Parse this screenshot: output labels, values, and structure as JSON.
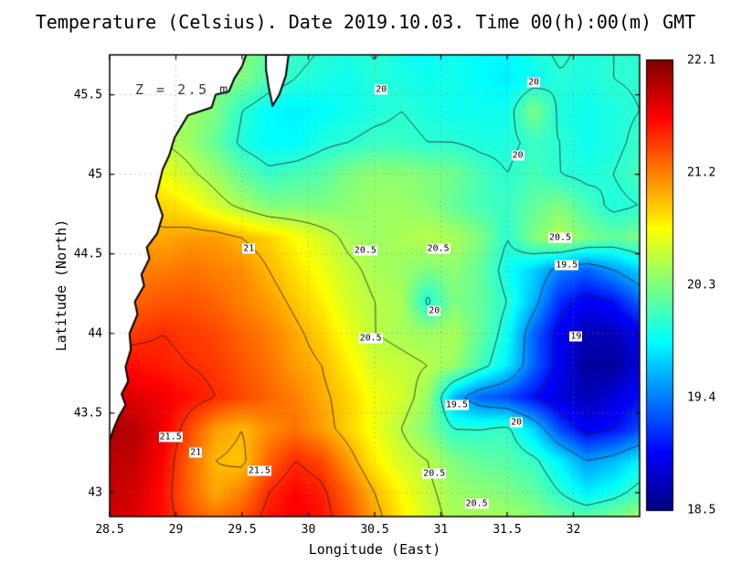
{
  "chart_data": {
    "type": "heatmap",
    "title": "Temperature (Celsius). Date 2019.10.03. Time 00(h):00(m) GMT",
    "annotation": "Z = 2.5 m",
    "xlabel": "Longitude (East)",
    "ylabel": "Latitude (North)",
    "units": "Celsius",
    "lon_range": [
      28.5,
      32.5
    ],
    "lat_range": [
      42.85,
      45.75
    ],
    "x_ticks": [
      28.5,
      29,
      29.5,
      30,
      30.5,
      31,
      31.5,
      32
    ],
    "y_ticks": [
      43,
      43.5,
      44,
      44.5,
      45,
      45.5
    ],
    "temp_min": 18.5,
    "temp_max": 22.1,
    "colorbar_ticks": [
      "22.1",
      "21.2",
      "20.3",
      "19.4",
      "18.5"
    ],
    "contour_levels": [
      19,
      19.5,
      20,
      20.5,
      21,
      21.5
    ],
    "contour_labels": [
      {
        "t": "20",
        "lon": 30.55,
        "lat": 45.53
      },
      {
        "t": "20",
        "lon": 31.7,
        "lat": 45.58
      },
      {
        "t": "20",
        "lon": 31.58,
        "lat": 45.12
      },
      {
        "t": "21",
        "lon": 29.55,
        "lat": 44.53
      },
      {
        "t": "20.5",
        "lon": 30.43,
        "lat": 44.52
      },
      {
        "t": "20.5",
        "lon": 30.98,
        "lat": 44.53
      },
      {
        "t": "20.5",
        "lon": 31.9,
        "lat": 44.6
      },
      {
        "t": "19.5",
        "lon": 31.95,
        "lat": 44.43
      },
      {
        "t": "20",
        "lon": 30.95,
        "lat": 44.14
      },
      {
        "t": "20.5",
        "lon": 30.47,
        "lat": 43.97
      },
      {
        "t": "19",
        "lon": 32.02,
        "lat": 43.98
      },
      {
        "t": "19.5",
        "lon": 31.12,
        "lat": 43.55
      },
      {
        "t": "20",
        "lon": 31.57,
        "lat": 43.44
      },
      {
        "t": "21.5",
        "lon": 28.96,
        "lat": 43.35
      },
      {
        "t": "21",
        "lon": 29.15,
        "lat": 43.25
      },
      {
        "t": "21.5",
        "lon": 29.63,
        "lat": 43.14
      },
      {
        "t": "20.5",
        "lon": 30.95,
        "lat": 43.12
      },
      {
        "t": "20.5",
        "lon": 31.27,
        "lat": 42.93
      }
    ],
    "grid": {
      "lons": [
        28.5,
        28.7,
        28.9,
        29.1,
        29.3,
        29.5,
        29.7,
        29.9,
        30.1,
        30.3,
        30.5,
        30.7,
        30.9,
        31.1,
        31.3,
        31.5,
        31.7,
        31.9,
        32.1,
        32.3,
        32.5
      ],
      "lats": [
        45.8,
        45.6,
        45.4,
        45.2,
        45.0,
        44.8,
        44.6,
        44.4,
        44.2,
        44.0,
        43.8,
        43.6,
        43.4,
        43.2,
        43.0,
        42.8
      ],
      "values": [
        [
          20.3,
          20.3,
          20.3,
          20.3,
          20.3,
          20.35,
          20.15,
          20.05,
          20.0,
          19.95,
          20.02,
          19.9,
          19.85,
          19.9,
          19.85,
          19.85,
          19.95,
          20.05,
          19.95,
          20.0,
          20.0
        ],
        [
          20.3,
          20.3,
          20.3,
          20.3,
          20.3,
          20.3,
          20.12,
          20.0,
          19.95,
          19.9,
          19.98,
          19.95,
          19.9,
          19.92,
          19.85,
          19.8,
          19.88,
          19.98,
          19.95,
          20.0,
          20.02
        ],
        [
          20.4,
          20.4,
          20.4,
          20.4,
          20.3,
          20.0,
          19.85,
          19.8,
          19.85,
          19.9,
          19.95,
          20.0,
          19.95,
          19.9,
          19.9,
          19.9,
          20.3,
          19.95,
          19.9,
          19.95,
          20.0
        ],
        [
          20.5,
          20.5,
          20.5,
          20.4,
          20.2,
          19.95,
          19.85,
          19.85,
          19.95,
          20.0,
          20.05,
          20.05,
          20.0,
          20.0,
          19.95,
          19.95,
          20.05,
          20.0,
          19.9,
          19.95,
          20.05
        ],
        [
          20.8,
          20.8,
          20.7,
          20.55,
          20.4,
          20.2,
          20.05,
          20.1,
          20.15,
          20.3,
          20.35,
          20.35,
          20.3,
          20.25,
          20.1,
          20.0,
          20.1,
          20.0,
          19.95,
          20.0,
          20.1
        ],
        [
          21.0,
          21.0,
          20.9,
          20.8,
          20.6,
          20.45,
          20.3,
          20.3,
          20.3,
          20.35,
          20.4,
          20.4,
          20.35,
          20.2,
          20.1,
          20.05,
          20.2,
          20.3,
          20.1,
          19.95,
          20.0
        ],
        [
          21.1,
          21.1,
          21.05,
          21.1,
          21.1,
          21.0,
          20.9,
          20.75,
          20.6,
          20.45,
          20.4,
          20.45,
          20.5,
          20.45,
          20.3,
          20.0,
          20.3,
          20.5,
          20.3,
          20.2,
          20.3
        ],
        [
          21.2,
          21.2,
          21.2,
          21.25,
          21.2,
          21.15,
          21.0,
          20.85,
          20.7,
          20.55,
          20.45,
          20.4,
          20.3,
          20.35,
          20.2,
          19.9,
          19.7,
          19.4,
          19.3,
          19.5,
          19.7
        ],
        [
          21.3,
          21.3,
          21.35,
          21.35,
          21.3,
          21.2,
          21.1,
          20.95,
          20.8,
          20.6,
          20.5,
          20.45,
          19.95,
          20.3,
          20.2,
          20.0,
          19.6,
          19.1,
          18.9,
          19.0,
          19.3
        ],
        [
          21.4,
          21.45,
          21.5,
          21.45,
          21.4,
          21.3,
          21.2,
          21.05,
          20.9,
          20.7,
          20.5,
          20.45,
          20.4,
          20.45,
          20.2,
          19.9,
          19.3,
          18.9,
          18.7,
          18.7,
          18.9
        ],
        [
          21.6,
          21.6,
          21.55,
          21.5,
          21.45,
          21.35,
          21.25,
          21.1,
          21.0,
          20.8,
          20.6,
          20.55,
          20.5,
          20.4,
          20.1,
          19.8,
          19.3,
          18.9,
          18.6,
          18.6,
          18.8
        ],
        [
          21.8,
          21.75,
          21.7,
          21.6,
          21.5,
          21.4,
          21.3,
          21.2,
          21.05,
          20.9,
          20.7,
          20.6,
          20.4,
          19.6,
          19.3,
          19.2,
          19.0,
          18.8,
          18.7,
          18.8,
          19.0
        ],
        [
          21.95,
          21.9,
          21.7,
          21.4,
          21.1,
          21.0,
          21.15,
          21.25,
          21.1,
          20.9,
          20.7,
          20.5,
          20.3,
          20.0,
          20.0,
          20.05,
          19.7,
          19.2,
          18.9,
          19.0,
          19.2
        ],
        [
          21.9,
          21.85,
          21.65,
          21.3,
          21.0,
          20.95,
          21.3,
          21.5,
          21.4,
          21.1,
          20.8,
          20.6,
          20.5,
          20.3,
          20.2,
          20.15,
          20.05,
          19.8,
          19.5,
          19.6,
          19.8
        ],
        [
          21.85,
          21.8,
          21.6,
          21.3,
          21.05,
          21.2,
          21.5,
          21.65,
          21.55,
          21.3,
          21.0,
          20.75,
          20.55,
          20.4,
          20.35,
          20.3,
          20.2,
          20.0,
          19.8,
          19.9,
          20.1
        ],
        [
          21.8,
          21.75,
          21.6,
          21.4,
          21.3,
          21.4,
          21.6,
          21.7,
          21.6,
          21.4,
          21.1,
          20.85,
          20.6,
          20.45,
          20.5,
          20.45,
          20.4,
          20.3,
          20.3,
          20.4,
          20.5
        ]
      ]
    },
    "coastline": [
      [
        28.5,
        45.75
      ],
      [
        29.53,
        45.75
      ],
      [
        29.5,
        45.68
      ],
      [
        29.44,
        45.6
      ],
      [
        29.4,
        45.52
      ],
      [
        29.3,
        45.5
      ],
      [
        29.27,
        45.42
      ],
      [
        29.09,
        45.37
      ],
      [
        28.99,
        45.23
      ],
      [
        28.95,
        45.12
      ],
      [
        28.9,
        45.03
      ],
      [
        28.85,
        44.86
      ],
      [
        28.9,
        44.74
      ],
      [
        28.86,
        44.63
      ],
      [
        28.78,
        44.54
      ],
      [
        28.8,
        44.47
      ],
      [
        28.74,
        44.37
      ],
      [
        28.76,
        44.3
      ],
      [
        28.69,
        44.2
      ],
      [
        28.71,
        44.12
      ],
      [
        28.65,
        44.0
      ],
      [
        28.66,
        43.9
      ],
      [
        28.62,
        43.79
      ],
      [
        28.64,
        43.7
      ],
      [
        28.59,
        43.62
      ],
      [
        28.62,
        43.55
      ],
      [
        28.57,
        43.48
      ],
      [
        28.53,
        43.4
      ],
      [
        28.5,
        43.33
      ]
    ],
    "delta_island": [
      [
        29.68,
        45.75
      ],
      [
        29.85,
        45.75
      ],
      [
        29.83,
        45.62
      ],
      [
        29.78,
        45.5
      ],
      [
        29.73,
        45.43
      ],
      [
        29.7,
        45.55
      ],
      [
        29.68,
        45.66
      ]
    ]
  }
}
